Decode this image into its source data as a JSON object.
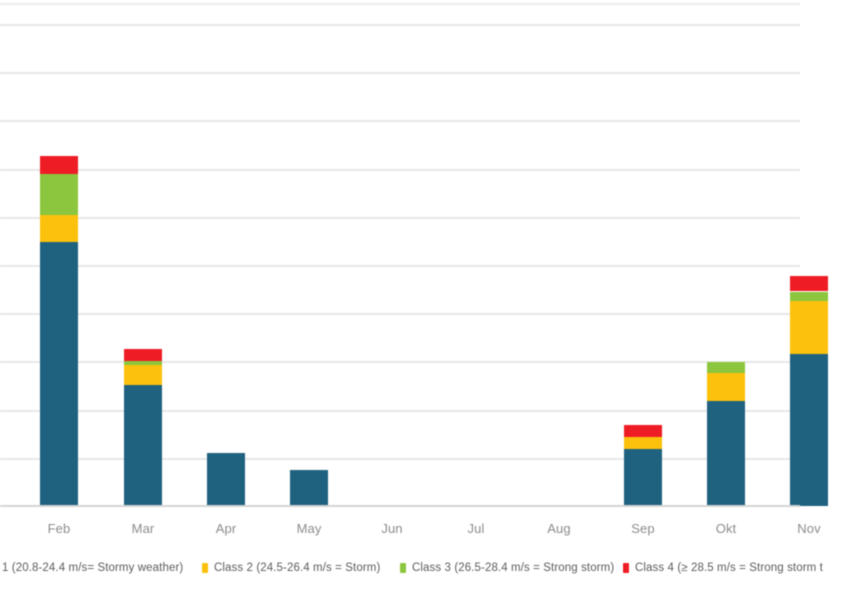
{
  "chart_data": {
    "type": "bar",
    "stacked": true,
    "title": "",
    "xlabel": "",
    "ylabel": "",
    "grid": true,
    "legend_position": "bottom",
    "ylim": [
      0,
      10.4
    ],
    "y_axis_note": "y-axis tick labels are cropped outside the left edge of the screenshot; values are estimated in gridline units (1 unit = one gridline interval)",
    "categories": [
      "Feb",
      "Mar",
      "Apr",
      "May",
      "Jun",
      "Jul",
      "Aug",
      "Sep",
      "Okt",
      "Nov"
    ],
    "series": [
      {
        "name": "1 (20.8-24.4 m/s= Stormy weather)",
        "color": "#1e6280",
        "values": [
          5.48,
          2.51,
          1.1,
          0.75,
          0,
          0,
          0,
          1.19,
          2.17,
          3.15
        ]
      },
      {
        "name": "Class 2 (24.5-26.4 m/s = Storm)",
        "color": "#fcc10d",
        "values": [
          0.56,
          0.41,
          0,
          0,
          0,
          0,
          0,
          0.25,
          0.58,
          1.1
        ]
      },
      {
        "name": "Class 3 (26.5-28.4 m/s = Strong storm)",
        "color": "#8cc63f",
        "values": [
          0.85,
          0.08,
          0,
          0,
          0,
          0,
          0,
          0,
          0.23,
          0.2
        ]
      },
      {
        "name": "Class 4 (≥ 28.5 m/s = Strong storm t",
        "color": "#ee1c25",
        "values": [
          0.38,
          0.25,
          0,
          0,
          0,
          0,
          0,
          0.25,
          0,
          0.33
        ]
      }
    ]
  },
  "legend": {
    "items": [
      {
        "label": "1 (20.8-24.4 m/s= Stormy weather)",
        "marker_color": "#1e6280",
        "marker_visible": false
      },
      {
        "label": "Class 2 (24.5-26.4 m/s = Storm)",
        "marker_color": "#fcc10d",
        "marker_visible": true
      },
      {
        "label": "Class 3 (26.5-28.4 m/s = Strong storm)",
        "marker_color": "#8cc63f",
        "marker_visible": true
      },
      {
        "label": "Class 4 (≥ 28.5 m/s = Strong storm t",
        "marker_color": "#ee1c25",
        "marker_visible": true
      }
    ]
  },
  "colors": {
    "gridline": "#e7e7e7",
    "axis_line": "#d4d4d4",
    "x_label_text": "#8c8c8c",
    "legend_text": "#5c5c5c",
    "background": "#ffffff"
  }
}
